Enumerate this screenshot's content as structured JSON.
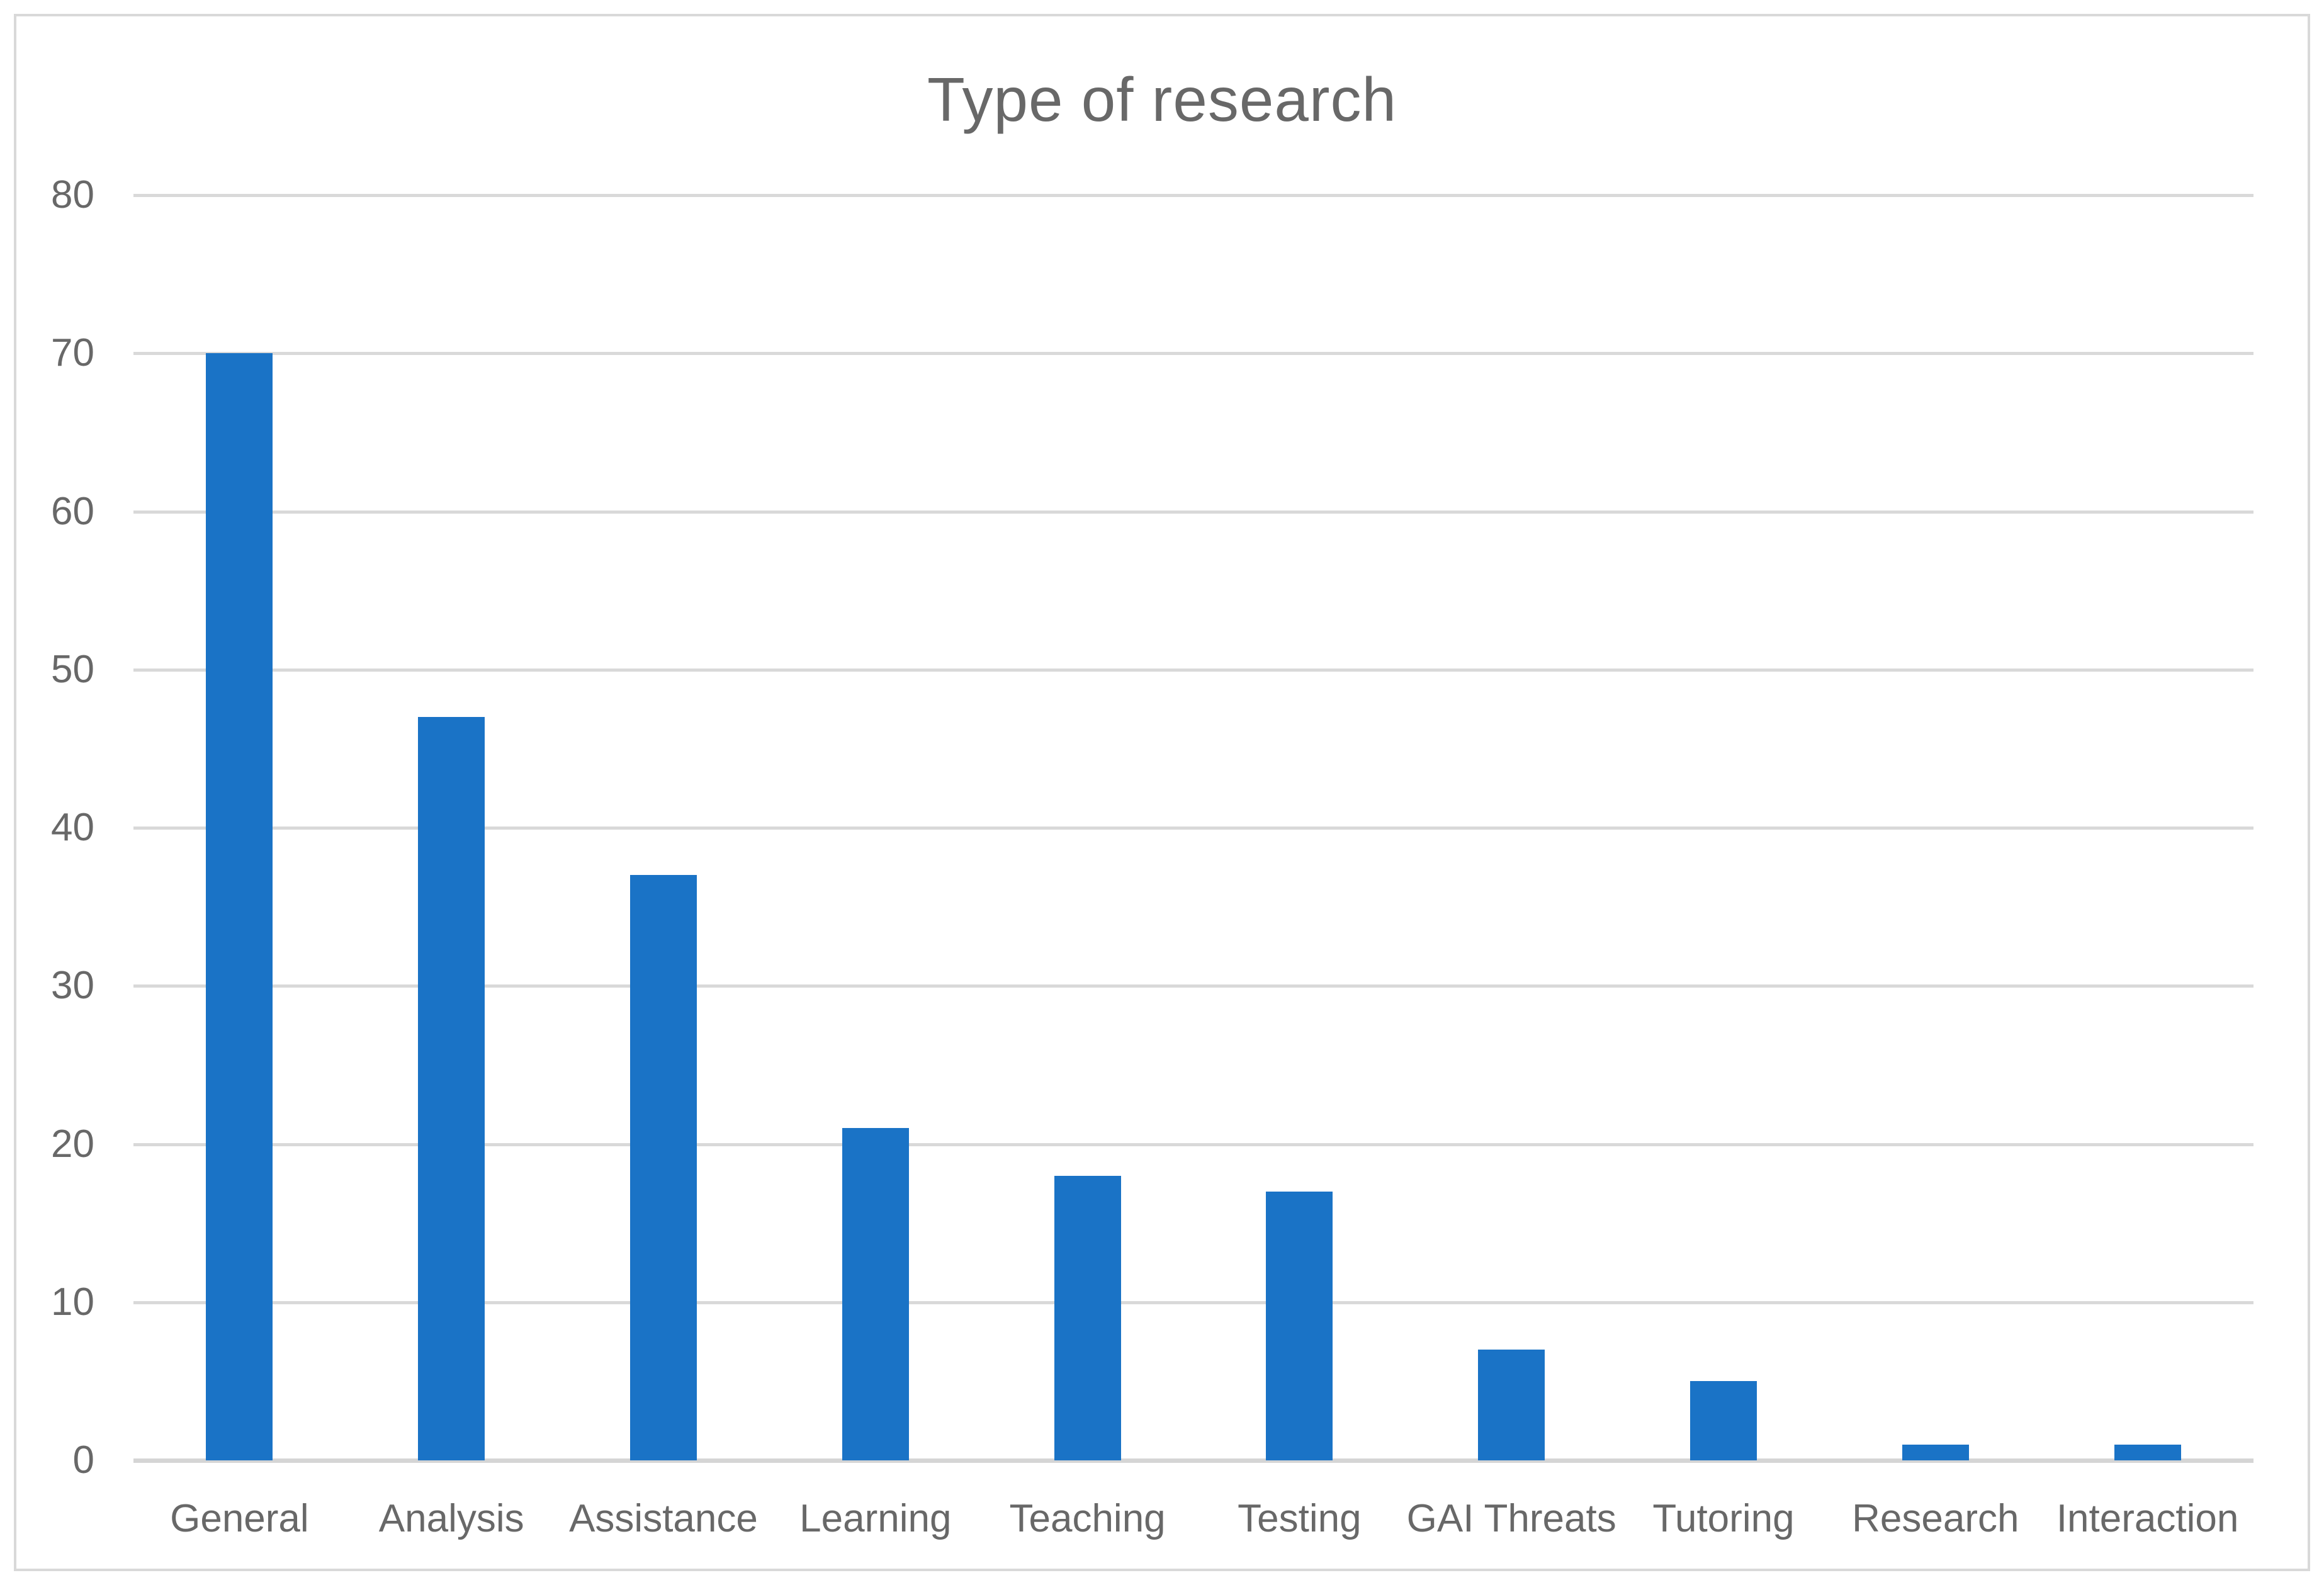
{
  "chart": {
    "background": "#FFFFFF",
    "border_color": "#D9D9D9",
    "bar_color": "#1A73C6",
    "gridline_color": "#D9D9D9",
    "axis_line_color": "#D5D5D5",
    "text_color": "#686868"
  },
  "chart_data": {
    "type": "bar",
    "title": "Type of research",
    "categories": [
      "General",
      "Analysis",
      "Assistance",
      "Learning",
      "Teaching",
      "Testing",
      "GAI Threats",
      "Tutoring",
      "Research",
      "Interaction"
    ],
    "values": [
      70,
      47,
      37,
      21,
      18,
      17,
      7,
      5,
      1,
      1
    ],
    "xlabel": "",
    "ylabel": "",
    "ylim": [
      0,
      80
    ],
    "yticks": [
      0,
      10,
      20,
      30,
      40,
      50,
      60,
      70,
      80
    ],
    "grid": true,
    "legend": false,
    "series_color": "#1A73C6"
  }
}
